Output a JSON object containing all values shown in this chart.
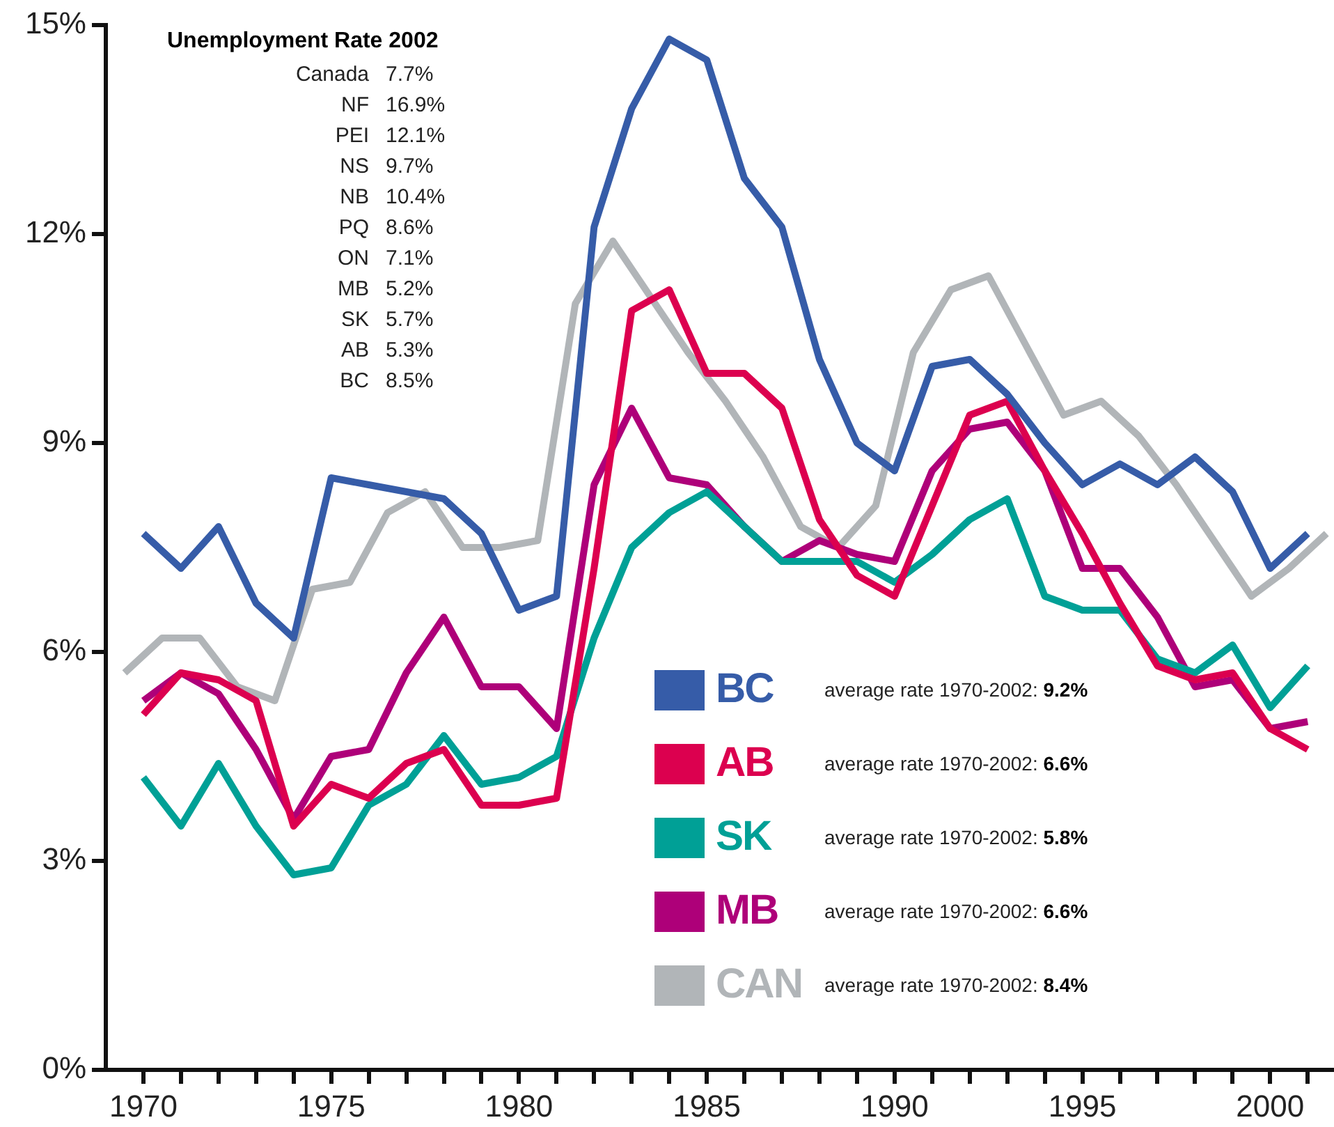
{
  "chart_data": {
    "type": "line",
    "title": "Unemployment Rate 2002",
    "x": [
      1970,
      1971,
      1972,
      1973,
      1974,
      1975,
      1976,
      1977,
      1978,
      1979,
      1980,
      1981,
      1982,
      1983,
      1984,
      1985,
      1986,
      1987,
      1988,
      1989,
      1990,
      1991,
      1992,
      1993,
      1994,
      1995,
      1996,
      1997,
      1998,
      1999,
      2000,
      2001
    ],
    "series": [
      {
        "name": "BC",
        "color": "#365ca8",
        "values": [
          7.7,
          7.2,
          7.8,
          6.7,
          6.2,
          8.5,
          8.4,
          8.3,
          8.2,
          7.7,
          6.6,
          6.8,
          12.1,
          13.8,
          14.8,
          14.5,
          12.8,
          12.1,
          10.2,
          9.0,
          8.6,
          10.1,
          10.2,
          9.7,
          9.0,
          8.4,
          8.7,
          8.4,
          8.8,
          8.3,
          7.2,
          7.7
        ]
      },
      {
        "name": "AB",
        "color": "#dc004f",
        "values": [
          5.1,
          5.7,
          5.6,
          5.3,
          3.5,
          4.1,
          3.9,
          4.4,
          4.6,
          3.8,
          3.8,
          3.9,
          7.2,
          10.9,
          11.2,
          10.0,
          10.0,
          9.5,
          7.9,
          7.1,
          6.8,
          8.1,
          9.4,
          9.6,
          8.6,
          7.7,
          6.7,
          5.8,
          5.6,
          5.7,
          4.9,
          4.6
        ]
      },
      {
        "name": "SK",
        "color": "#00a096",
        "values": [
          4.2,
          3.5,
          4.4,
          3.5,
          2.8,
          2.9,
          3.8,
          4.1,
          4.8,
          4.1,
          4.2,
          4.5,
          6.2,
          7.5,
          8.0,
          8.3,
          7.8,
          7.3,
          7.3,
          7.3,
          7.0,
          7.4,
          7.9,
          8.2,
          6.8,
          6.6,
          6.6,
          5.9,
          5.7,
          6.1,
          5.2,
          5.8
        ]
      },
      {
        "name": "MB",
        "color": "#ae0079",
        "values": [
          5.3,
          5.7,
          5.4,
          4.6,
          3.6,
          4.5,
          4.6,
          5.7,
          6.5,
          5.5,
          5.5,
          4.9,
          8.4,
          9.5,
          8.5,
          8.4,
          7.8,
          7.3,
          7.6,
          7.4,
          7.3,
          8.6,
          9.2,
          9.3,
          8.6,
          7.2,
          7.2,
          6.5,
          5.5,
          5.6,
          4.9,
          5.0
        ]
      },
      {
        "name": "CAN",
        "color": "#b1b5b8",
        "x": [
          1969.5,
          1970.5,
          1971.5,
          1972.5,
          1973.5,
          1974.5,
          1975.5,
          1976.5,
          1977.5,
          1978.5,
          1979.5,
          1980.5,
          1981.5,
          1982.5,
          1983.5,
          1984.5,
          1985.5,
          1986.5,
          1987.5,
          1988.5,
          1989.5,
          1990.5,
          1991.5,
          1992.5,
          1993.5,
          1994.5,
          1995.5,
          1996.5,
          1997.5,
          1998.5,
          1999.5,
          2000.5,
          2001.5
        ],
        "values": [
          5.7,
          6.2,
          6.2,
          5.5,
          5.3,
          6.9,
          7.0,
          8.0,
          8.3,
          7.5,
          7.5,
          7.6,
          11.0,
          11.9,
          11.1,
          10.3,
          9.6,
          8.8,
          7.8,
          7.5,
          8.1,
          10.3,
          11.2,
          11.4,
          10.4,
          9.4,
          9.6,
          9.1,
          8.4,
          7.6,
          6.8,
          7.2,
          7.7
        ]
      }
    ],
    "xlim": [
      1969,
      2001.7
    ],
    "xticks": [
      1970,
      {
        "value": 1971,
        "label": null
      },
      {
        "value": 1972,
        "label": null
      },
      {
        "value": 1973,
        "label": null
      },
      {
        "value": 1974,
        "label": null
      },
      1975,
      {
        "value": 1976,
        "label": null
      },
      {
        "value": 1977,
        "label": null
      },
      {
        "value": 1978,
        "label": null
      },
      {
        "value": 1979,
        "label": null
      },
      1980,
      {
        "value": 1981,
        "label": null
      },
      {
        "value": 1982,
        "label": null
      },
      {
        "value": 1983,
        "label": null
      },
      {
        "value": 1984,
        "label": null
      },
      1985,
      {
        "value": 1986,
        "label": null
      },
      {
        "value": 1987,
        "label": null
      },
      {
        "value": 1988,
        "label": null
      },
      {
        "value": 1989,
        "label": null
      },
      1990,
      {
        "value": 1991,
        "label": null
      },
      {
        "value": 1992,
        "label": null
      },
      {
        "value": 1993,
        "label": null
      },
      {
        "value": 1994,
        "label": null
      },
      1995,
      {
        "value": 1996,
        "label": null
      },
      {
        "value": 1997,
        "label": null
      },
      {
        "value": 1998,
        "label": null
      },
      {
        "value": 1999,
        "label": null
      },
      2000,
      {
        "value": 2001,
        "label": null
      }
    ],
    "ylim": [
      0,
      15
    ],
    "yticks": [
      {
        "value": 0,
        "label": "0%"
      },
      {
        "value": 3,
        "label": "3%"
      },
      {
        "value": 6,
        "label": "6%"
      },
      {
        "value": 9,
        "label": "9%"
      },
      {
        "value": 12,
        "label": "12%"
      },
      {
        "value": 15,
        "label": "15%"
      }
    ],
    "legend": "bottom right",
    "annotations": [
      "average rate 1970-2002: 9.2%",
      "average rate 1970-2002: 6.6%",
      "average rate 1970-2002: 5.8%",
      "average rate 1970-2002: 6.6%",
      "average rate 1970-2002: 8.4%",
      "Canada 7.7%",
      "NF 16.9%",
      "PEI 12.1%",
      "NS 9.7%",
      "NB 10.4%",
      "PQ 8.6%",
      "ON 7.1%",
      "MB 5.2%",
      "SK 5.7%",
      "AB 5.3%",
      "BC 8.5%"
    ]
  }
}
